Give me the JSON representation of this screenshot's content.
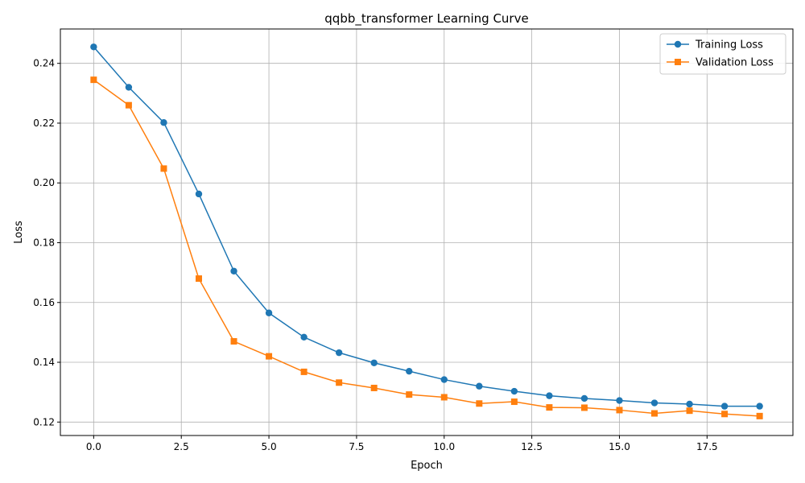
{
  "chart_data": {
    "type": "line",
    "title": "qqbb_transformer Learning Curve",
    "xlabel": "Epoch",
    "ylabel": "Loss",
    "xlim": [
      -0.95,
      19.95
    ],
    "ylim": [
      0.1155,
      0.2515
    ],
    "xticks": [
      0.0,
      2.5,
      5.0,
      7.5,
      10.0,
      12.5,
      15.0,
      17.5
    ],
    "xtick_labels": [
      "0.0",
      "2.5",
      "5.0",
      "7.5",
      "10.0",
      "12.5",
      "15.0",
      "17.5"
    ],
    "yticks": [
      0.12,
      0.14,
      0.16,
      0.18,
      0.2,
      0.22,
      0.24
    ],
    "ytick_labels": [
      "0.12",
      "0.14",
      "0.16",
      "0.18",
      "0.20",
      "0.22",
      "0.24"
    ],
    "grid": true,
    "legend_position": "top-right",
    "x": [
      0,
      1,
      2,
      3,
      4,
      5,
      6,
      7,
      8,
      9,
      10,
      11,
      12,
      13,
      14,
      15,
      16,
      17,
      18,
      19
    ],
    "series": [
      {
        "name": "Training Loss",
        "color": "#1f77b4",
        "marker": "circle",
        "values": [
          0.2455,
          0.232,
          0.2202,
          0.1963,
          0.1705,
          0.1565,
          0.1484,
          0.1432,
          0.1398,
          0.137,
          0.1342,
          0.132,
          0.1303,
          0.1288,
          0.1279,
          0.1272,
          0.1264,
          0.126,
          0.1253,
          0.1253
        ]
      },
      {
        "name": "Validation Loss",
        "color": "#ff7f0e",
        "marker": "square",
        "values": [
          0.2345,
          0.226,
          0.2048,
          0.168,
          0.147,
          0.142,
          0.1368,
          0.1332,
          0.1314,
          0.1292,
          0.1283,
          0.1262,
          0.1268,
          0.1249,
          0.1248,
          0.124,
          0.1229,
          0.1238,
          0.1227,
          0.122
        ]
      }
    ]
  }
}
